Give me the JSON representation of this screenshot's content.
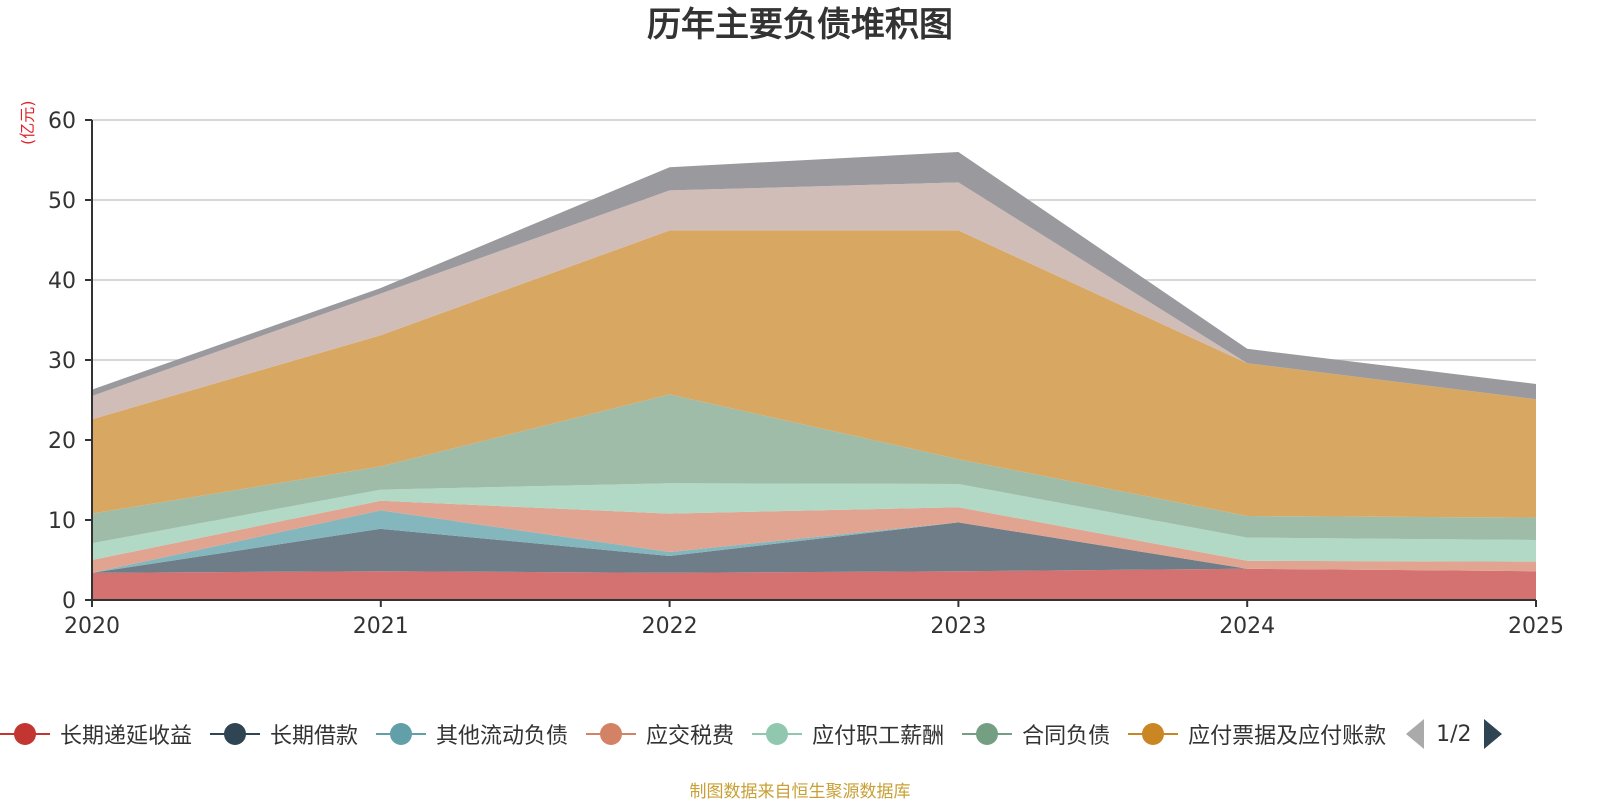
{
  "chart_data": {
    "type": "area",
    "stacked": true,
    "title": "历年主要负债堆积图",
    "ylabel": "(亿元)",
    "ylim": [
      0,
      60
    ],
    "yticks": [
      "0",
      "10",
      "20",
      "30",
      "40",
      "50",
      "60"
    ],
    "x": [
      "2020",
      "2021",
      "2022",
      "2023",
      "2024",
      "2025"
    ],
    "series": [
      {
        "name": "长期递延收益",
        "color": "#c23531",
        "fill": "#d47272",
        "values": [
          3.4,
          3.6,
          3.4,
          3.6,
          3.9,
          3.6
        ],
        "in_legend": true
      },
      {
        "name": "长期借款",
        "color": "#2f4554",
        "fill": "#6e7d88",
        "values": [
          0,
          5.3,
          2.1,
          6.1,
          0,
          0
        ],
        "in_legend": true
      },
      {
        "name": "其他流动负债",
        "color": "#61a0a8",
        "fill": "#84b6bd",
        "values": [
          0,
          2.3,
          0.5,
          0,
          0,
          0
        ],
        "in_legend": true
      },
      {
        "name": "应交税费",
        "color": "#d48265",
        "fill": "#e0a490",
        "values": [
          1.6,
          1.2,
          4.8,
          1.9,
          1.0,
          1.2
        ],
        "in_legend": true
      },
      {
        "name": "应付职工薪酬",
        "color": "#91c7ae",
        "fill": "#b2d8c6",
        "values": [
          2.1,
          1.4,
          3.8,
          2.9,
          2.9,
          2.7
        ],
        "in_legend": true
      },
      {
        "name": "合同负债",
        "color": "#749f83",
        "fill": "#9ebca8",
        "values": [
          3.7,
          2.9,
          11.1,
          3.1,
          2.7,
          2.8
        ],
        "in_legend": true
      },
      {
        "name": "应付票据及应付账款",
        "color": "#ca8622",
        "fill": "#d8a863",
        "values": [
          11.8,
          16.4,
          20.5,
          28.6,
          19.1,
          14.8
        ],
        "in_legend": true
      },
      {
        "name": "",
        "color": "#bda29a",
        "fill": "#d1bdb8",
        "values": [
          2.9,
          5.2,
          5.0,
          6.0,
          0,
          0
        ],
        "in_legend": false
      },
      {
        "name": "",
        "color": "#6e7074",
        "fill": "#9a9a9e",
        "values": [
          0.8,
          0.7,
          2.9,
          3.8,
          1.8,
          1.9
        ],
        "in_legend": false
      }
    ]
  },
  "legend": {
    "page_indicator": "1/2"
  },
  "footer": {
    "source_note": "制图数据来自恒生聚源数据库"
  },
  "colors": {
    "grid": "#cccccc",
    "axis": "#333333",
    "unit_label": "#e0252a",
    "source_note": "#c8a035"
  }
}
